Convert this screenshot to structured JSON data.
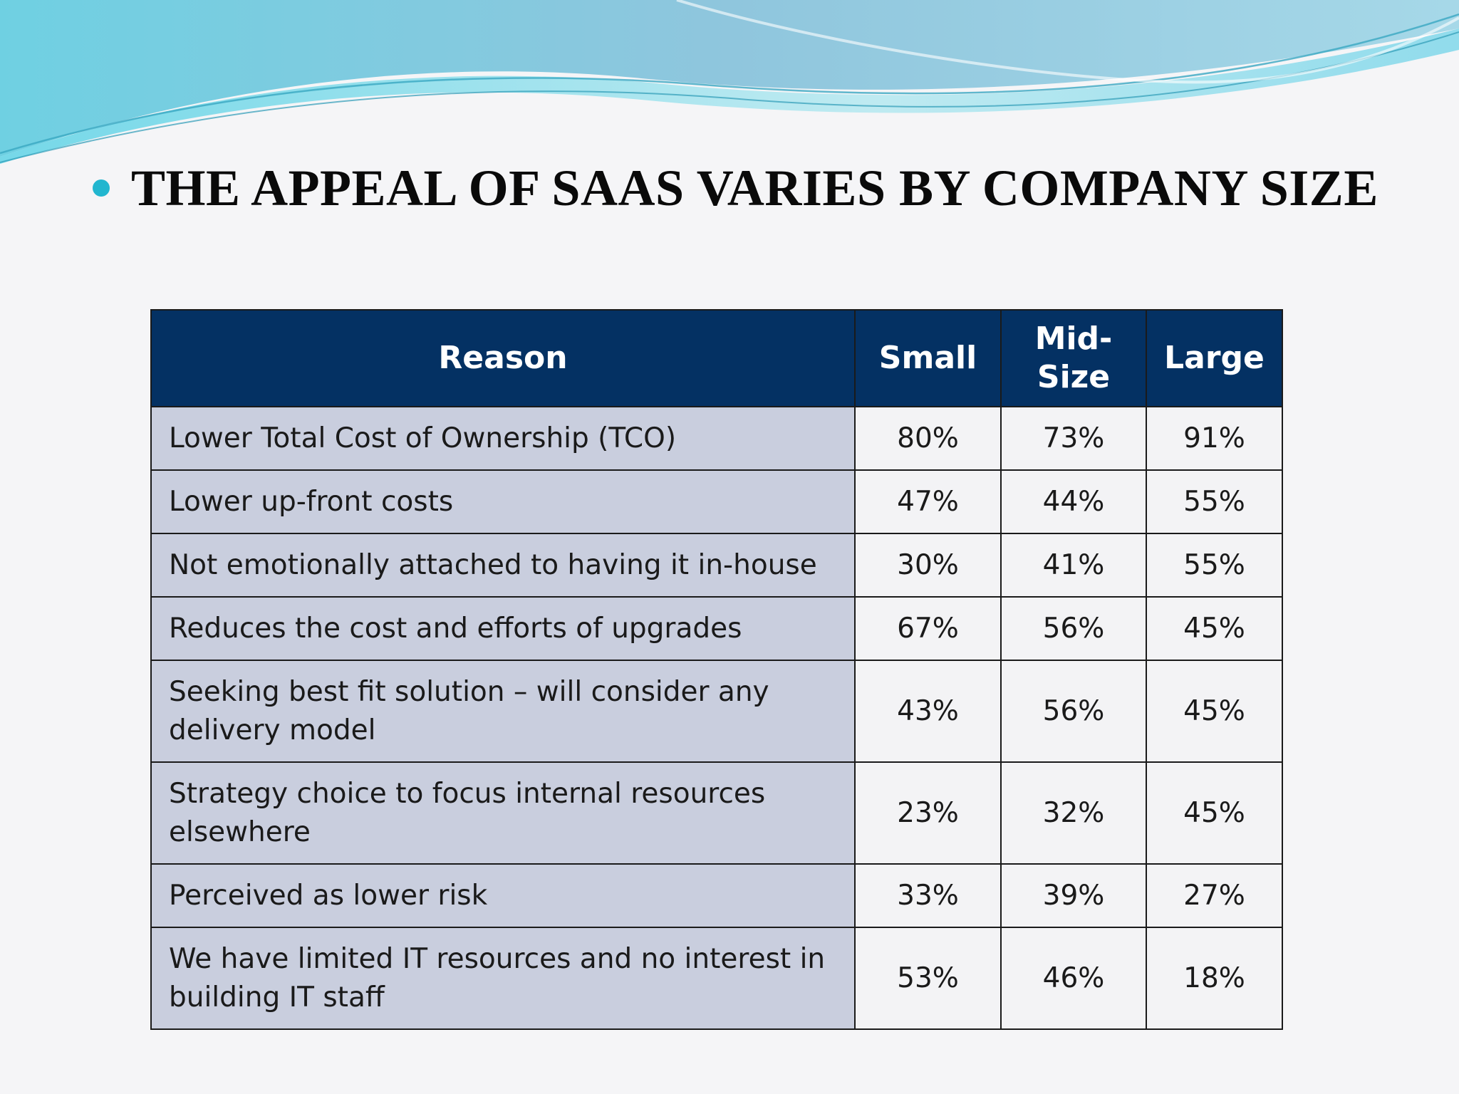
{
  "slide": {
    "title": "THE APPEAL OF SAAS VARIES BY COMPANY SIZE"
  },
  "colors": {
    "header_fill": "#043163",
    "reason_cell_fill": "#c9cede",
    "value_cell_fill": "#f3f3f5",
    "bullet": "#22b6cf",
    "wave_light": "#a8e4ee",
    "wave_dark": "#5bb7d6"
  },
  "table": {
    "headers": {
      "reason": "Reason",
      "small": "Small",
      "mid": "Mid-Size",
      "large": "Large"
    },
    "rows": [
      {
        "reason": "Lower Total Cost of Ownership (TCO)",
        "small": "80%",
        "mid": "73%",
        "large": "91%"
      },
      {
        "reason": "Lower up-front costs",
        "small": "47%",
        "mid": "44%",
        "large": "55%"
      },
      {
        "reason": "Not emotionally attached to having it in-house",
        "small": "30%",
        "mid": "41%",
        "large": "55%"
      },
      {
        "reason": "Reduces the cost and efforts of upgrades",
        "small": "67%",
        "mid": "56%",
        "large": "45%"
      },
      {
        "reason": "Seeking best fit solution – will consider any delivery model",
        "small": "43%",
        "mid": "56%",
        "large": "45%"
      },
      {
        "reason": "Strategy choice to focus internal resources elsewhere",
        "small": "23%",
        "mid": "32%",
        "large": "45%"
      },
      {
        "reason": "Perceived as lower risk",
        "small": "33%",
        "mid": "39%",
        "large": "27%"
      },
      {
        "reason": "We have limited IT resources and no interest in building IT staff",
        "small": "53%",
        "mid": "46%",
        "large": "18%"
      }
    ]
  }
}
